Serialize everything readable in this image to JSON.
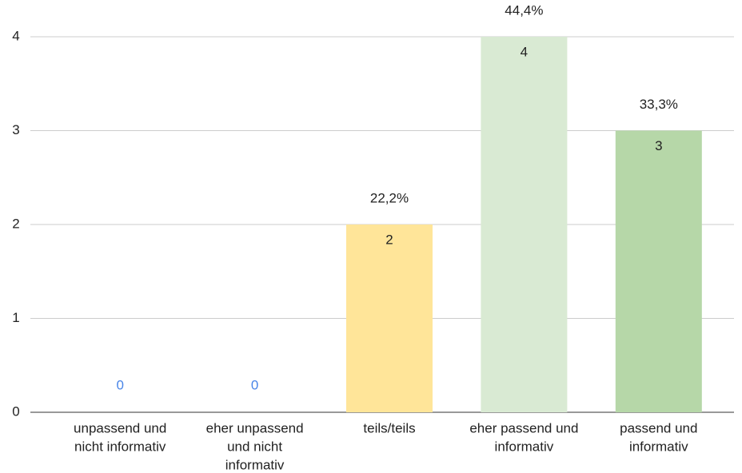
{
  "chart_data": {
    "type": "bar",
    "categories": [
      [
        "unpassend und",
        "nicht informativ"
      ],
      [
        "eher unpassend",
        "und nicht",
        "informativ"
      ],
      [
        "teils/teils"
      ],
      [
        "eher passend und",
        "informativ"
      ],
      [
        "passend und",
        "informativ"
      ]
    ],
    "values": [
      0,
      0,
      2,
      4,
      3
    ],
    "percent_labels": [
      null,
      null,
      "22,2%",
      "44,4%",
      "33,3%"
    ],
    "colors": [
      "#4a86e8",
      "#4a86e8",
      "#ffe599",
      "#d9ead3",
      "#b6d7a8"
    ],
    "ylim": [
      0,
      4
    ],
    "yticks": [
      0,
      1,
      2,
      3,
      4
    ],
    "grid": true
  }
}
